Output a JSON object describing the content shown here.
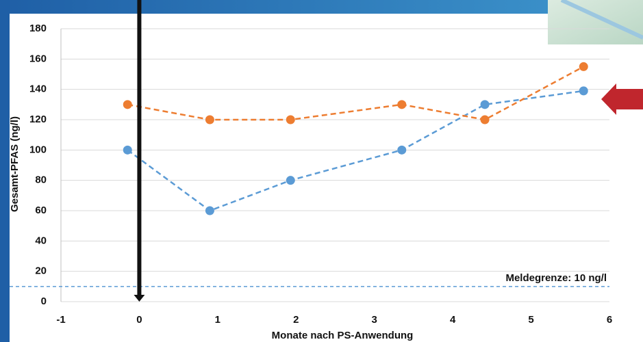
{
  "chart_data": {
    "type": "line",
    "xlabel": "Monate nach PS-Anwendung",
    "ylabel": "Gesamt-PFAS (ng/l)",
    "x": [
      -0.15,
      0.9,
      1.93,
      3.35,
      4.41,
      5.67
    ],
    "series": [
      {
        "color": "#5b9bd5",
        "values": [
          100,
          60,
          80,
          100,
          130,
          139
        ]
      },
      {
        "color": "#ed7d31",
        "values": [
          130,
          120,
          120,
          130,
          120,
          155
        ]
      }
    ],
    "xlim": [
      -1,
      6
    ],
    "xticks": [
      -1,
      0,
      1,
      2,
      3,
      4,
      5,
      6
    ],
    "ylim": [
      0,
      180
    ],
    "yticks": [
      0,
      20,
      40,
      60,
      80,
      100,
      120,
      140,
      160,
      180
    ],
    "grid": true,
    "reference_line": {
      "y": 10,
      "label": "Meldegrenze: 10 ng/l"
    },
    "arrow_x": 0
  }
}
